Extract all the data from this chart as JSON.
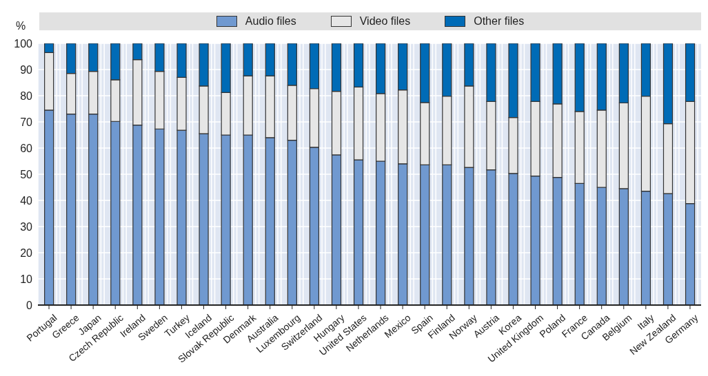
{
  "chart_data": {
    "type": "bar",
    "stacked": true,
    "ylabel": "%",
    "categories": [
      "Portugal",
      "Greece",
      "Japan",
      "Czech Republic",
      "Ireland",
      "Sweden",
      "Turkey",
      "Iceland",
      "Slovak Republic",
      "Denmark",
      "Australia",
      "Luxembourg",
      "Switzerland",
      "Hungary",
      "United States",
      "Netherlands",
      "Mexico",
      "Spain",
      "Finland",
      "Norway",
      "Austria",
      "Korea",
      "United Kingdom",
      "Poland",
      "France",
      "Canada",
      "Belgium",
      "Italy",
      "New Zealand",
      "Germany"
    ],
    "series": [
      {
        "name": "Audio files",
        "color": "#7099d0",
        "values": [
          74.5,
          73,
          73,
          70.2,
          68.8,
          67.3,
          66.8,
          65.5,
          65,
          65,
          64,
          63,
          60.3,
          57.4,
          55.5,
          55,
          54,
          53.6,
          53.6,
          52.6,
          51.7,
          50.3,
          49.3,
          48.8,
          46.5,
          45,
          44.5,
          43.5,
          42.6,
          38.8
        ]
      },
      {
        "name": "Video files",
        "color": "#e6e6e6",
        "values": [
          22,
          15.5,
          16.3,
          15.9,
          25,
          22,
          20.2,
          18.2,
          16.2,
          22.6,
          23.6,
          21,
          22.4,
          24.3,
          27.8,
          25.8,
          28.2,
          23.8,
          26.2,
          31.1,
          26.1,
          21.4,
          28.5,
          28.1,
          27.5,
          29.5,
          32.8,
          36.3,
          26.7,
          39
        ]
      },
      {
        "name": "Other files",
        "color": "#006bb6",
        "values": [
          3.5,
          11.5,
          10.7,
          13.9,
          6.2,
          10.7,
          13,
          16.3,
          18.8,
          12.4,
          12.4,
          16,
          17.3,
          18.3,
          16.7,
          19.2,
          17.8,
          22.6,
          20.2,
          16.3,
          22.2,
          28.3,
          22.2,
          23.1,
          26,
          25.5,
          22.7,
          20.2,
          30.7,
          22.2
        ]
      }
    ],
    "ylim": [
      0,
      100
    ],
    "yticks": [
      0,
      10,
      20,
      30,
      40,
      50,
      60,
      70,
      80,
      90,
      100
    ],
    "grid": true,
    "legend": "top"
  }
}
